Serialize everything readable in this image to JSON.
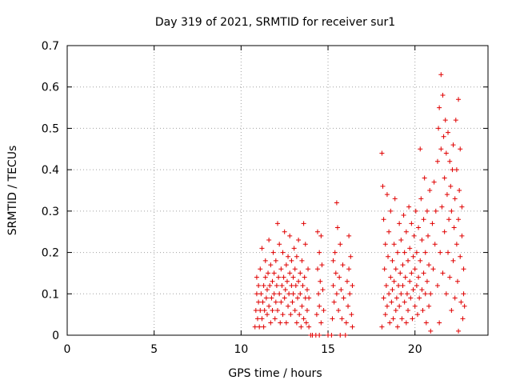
{
  "chart_data": {
    "type": "scatter",
    "title": "Day 319 of 2021, SRMTID for receiver sur1",
    "xlabel": "GPS time / hours",
    "ylabel": "SRMTID / TECUs",
    "xlim": [
      0,
      24.2
    ],
    "ylim": [
      0,
      0.7
    ],
    "x_ticks": [
      "0",
      "5",
      "10",
      "15",
      "20"
    ],
    "y_ticks": [
      "0",
      "0.1",
      "0.2",
      "0.3",
      "0.4",
      "0.5",
      "0.6",
      "0.7"
    ],
    "grid": true,
    "marker": "+",
    "color": "#e00000",
    "series": [
      {
        "name": "SRMTID",
        "points": [
          [
            10.8,
            0.02
          ],
          [
            10.85,
            0.06
          ],
          [
            10.9,
            0.1
          ],
          [
            10.9,
            0.14
          ],
          [
            10.95,
            0.04
          ],
          [
            11.0,
            0.08
          ],
          [
            11.0,
            0.12
          ],
          [
            11.05,
            0.02
          ],
          [
            11.1,
            0.06
          ],
          [
            11.1,
            0.16
          ],
          [
            11.15,
            0.1
          ],
          [
            11.2,
            0.04
          ],
          [
            11.2,
            0.21
          ],
          [
            11.25,
            0.08
          ],
          [
            11.3,
            0.12
          ],
          [
            11.3,
            0.02
          ],
          [
            11.35,
            0.06
          ],
          [
            11.4,
            0.14
          ],
          [
            11.4,
            0.18
          ],
          [
            11.45,
            0.09
          ],
          [
            11.5,
            0.11
          ],
          [
            11.5,
            0.05
          ],
          [
            11.55,
            0.15
          ],
          [
            11.6,
            0.07
          ],
          [
            11.6,
            0.23
          ],
          [
            11.65,
            0.12
          ],
          [
            11.7,
            0.03
          ],
          [
            11.7,
            0.17
          ],
          [
            11.75,
            0.09
          ],
          [
            11.8,
            0.13
          ],
          [
            11.8,
            0.06
          ],
          [
            11.85,
            0.2
          ],
          [
            11.9,
            0.1
          ],
          [
            11.9,
            0.15
          ],
          [
            11.95,
            0.04
          ],
          [
            12.0,
            0.08
          ],
          [
            12.0,
            0.18
          ],
          [
            12.05,
            0.12
          ],
          [
            12.1,
            0.27
          ],
          [
            12.1,
            0.06
          ],
          [
            12.15,
            0.14
          ],
          [
            12.2,
            0.1
          ],
          [
            12.2,
            0.22
          ],
          [
            12.25,
            0.03
          ],
          [
            12.3,
            0.16
          ],
          [
            12.3,
            0.08
          ],
          [
            12.35,
            0.12
          ],
          [
            12.4,
            0.2
          ],
          [
            12.4,
            0.05
          ],
          [
            12.45,
            0.14
          ],
          [
            12.5,
            0.09
          ],
          [
            12.5,
            0.25
          ],
          [
            12.55,
            0.11
          ],
          [
            12.6,
            0.17
          ],
          [
            12.6,
            0.03
          ],
          [
            12.65,
            0.13
          ],
          [
            12.7,
            0.07
          ],
          [
            12.7,
            0.19
          ],
          [
            12.75,
            0.1
          ],
          [
            12.8,
            0.15
          ],
          [
            12.8,
            0.24
          ],
          [
            12.85,
            0.05
          ],
          [
            12.9,
            0.12
          ],
          [
            12.9,
            0.18
          ],
          [
            12.95,
            0.08
          ],
          [
            13.0,
            0.14
          ],
          [
            13.0,
            0.1
          ],
          [
            13.05,
            0.21
          ],
          [
            13.1,
            0.06
          ],
          [
            13.1,
            0.16
          ],
          [
            13.15,
            0.12
          ],
          [
            13.2,
            0.03
          ],
          [
            13.2,
            0.19
          ],
          [
            13.25,
            0.09
          ],
          [
            13.3,
            0.13
          ],
          [
            13.3,
            0.23
          ],
          [
            13.35,
            0.05
          ],
          [
            13.4,
            0.15
          ],
          [
            13.4,
            0.1
          ],
          [
            13.45,
            0.02
          ],
          [
            13.5,
            0.18
          ],
          [
            13.5,
            0.07
          ],
          [
            13.55,
            0.12
          ],
          [
            13.6,
            0.27
          ],
          [
            13.6,
            0.04
          ],
          [
            13.65,
            0.14
          ],
          [
            13.7,
            0.09
          ],
          [
            13.7,
            0.22
          ],
          [
            13.75,
            0.03
          ],
          [
            13.8,
            0.11
          ],
          [
            13.8,
            0.06
          ],
          [
            13.85,
            0.16
          ],
          [
            13.9,
            0.02
          ],
          [
            13.9,
            0.09
          ],
          [
            14.0,
            0.0
          ],
          [
            14.1,
            0.0
          ],
          [
            14.3,
            0.0
          ],
          [
            14.35,
            0.05
          ],
          [
            14.4,
            0.16
          ],
          [
            14.4,
            0.25
          ],
          [
            14.45,
            0.1
          ],
          [
            14.5,
            0.2
          ],
          [
            14.5,
            0.07
          ],
          [
            14.55,
            0.13
          ],
          [
            14.6,
            0.03
          ],
          [
            14.6,
            0.24
          ],
          [
            14.65,
            0.17
          ],
          [
            14.7,
            0.11
          ],
          [
            14.75,
            0.06
          ],
          [
            14.5,
            0.0
          ],
          [
            15.0,
            0.0
          ],
          [
            15.2,
            0.0
          ],
          [
            15.25,
            0.04
          ],
          [
            15.3,
            0.12
          ],
          [
            15.3,
            0.18
          ],
          [
            15.35,
            0.08
          ],
          [
            15.4,
            0.2
          ],
          [
            15.45,
            0.15
          ],
          [
            15.5,
            0.32
          ],
          [
            15.5,
            0.1
          ],
          [
            15.55,
            0.26
          ],
          [
            15.6,
            0.06
          ],
          [
            15.65,
            0.14
          ],
          [
            15.7,
            0.22
          ],
          [
            15.75,
            0.11
          ],
          [
            15.8,
            0.04
          ],
          [
            15.85,
            0.17
          ],
          [
            15.9,
            0.09
          ],
          [
            15.7,
            0.0
          ],
          [
            16.0,
            0.0
          ],
          [
            16.05,
            0.03
          ],
          [
            16.1,
            0.13
          ],
          [
            16.15,
            0.07
          ],
          [
            16.2,
            0.24
          ],
          [
            16.2,
            0.16
          ],
          [
            16.25,
            0.1
          ],
          [
            16.3,
            0.19
          ],
          [
            16.35,
            0.05
          ],
          [
            16.4,
            0.12
          ],
          [
            16.4,
            0.02
          ],
          [
            18.1,
            0.44
          ],
          [
            18.1,
            0.02
          ],
          [
            18.15,
            0.36
          ],
          [
            18.2,
            0.28
          ],
          [
            18.2,
            0.09
          ],
          [
            18.25,
            0.16
          ],
          [
            18.3,
            0.05
          ],
          [
            18.3,
            0.22
          ],
          [
            18.35,
            0.12
          ],
          [
            18.4,
            0.34
          ],
          [
            18.4,
            0.07
          ],
          [
            18.45,
            0.19
          ],
          [
            18.5,
            0.1
          ],
          [
            18.5,
            0.25
          ],
          [
            18.55,
            0.03
          ],
          [
            18.6,
            0.14
          ],
          [
            18.6,
            0.3
          ],
          [
            18.65,
            0.08
          ],
          [
            18.7,
            0.18
          ],
          [
            18.7,
            0.11
          ],
          [
            18.75,
            0.04
          ],
          [
            18.8,
            0.22
          ],
          [
            18.8,
            0.13
          ],
          [
            18.85,
            0.33
          ],
          [
            18.9,
            0.06
          ],
          [
            18.9,
            0.16
          ],
          [
            18.95,
            0.09
          ],
          [
            19.0,
            0.2
          ],
          [
            19.0,
            0.02
          ],
          [
            19.05,
            0.12
          ],
          [
            19.1,
            0.27
          ],
          [
            19.1,
            0.07
          ],
          [
            19.15,
            0.15
          ],
          [
            19.2,
            0.1
          ],
          [
            19.2,
            0.23
          ],
          [
            19.25,
            0.04
          ],
          [
            19.3,
            0.17
          ],
          [
            19.3,
            0.12
          ],
          [
            19.35,
            0.29
          ],
          [
            19.4,
            0.08
          ],
          [
            19.4,
            0.2
          ],
          [
            19.45,
            0.14
          ],
          [
            19.5,
            0.03
          ],
          [
            19.5,
            0.25
          ],
          [
            19.55,
            0.1
          ],
          [
            19.6,
            0.18
          ],
          [
            19.6,
            0.06
          ],
          [
            19.65,
            0.31
          ],
          [
            19.7,
            0.13
          ],
          [
            19.7,
            0.21
          ],
          [
            19.75,
            0.09
          ],
          [
            19.8,
            0.15
          ],
          [
            19.8,
            0.27
          ],
          [
            19.85,
            0.04
          ],
          [
            19.9,
            0.19
          ],
          [
            19.9,
            0.11
          ],
          [
            19.95,
            0.24
          ],
          [
            20.0,
            0.07
          ],
          [
            20.0,
            0.16
          ],
          [
            20.05,
            0.3
          ],
          [
            20.1,
            0.12
          ],
          [
            20.1,
            0.2
          ],
          [
            20.15,
            0.05
          ],
          [
            20.2,
            0.26
          ],
          [
            20.2,
            0.14
          ],
          [
            20.25,
            0.09
          ],
          [
            20.3,
            0.45
          ],
          [
            20.3,
            0.18
          ],
          [
            20.35,
            0.33
          ],
          [
            20.4,
            0.11
          ],
          [
            20.4,
            0.23
          ],
          [
            20.45,
            0.06
          ],
          [
            20.5,
            0.28
          ],
          [
            20.5,
            0.15
          ],
          [
            20.55,
            0.38
          ],
          [
            20.6,
            0.1
          ],
          [
            20.6,
            0.2
          ],
          [
            20.65,
            0.03
          ],
          [
            20.7,
            0.3
          ],
          [
            20.7,
            0.13
          ],
          [
            20.75,
            0.24
          ],
          [
            20.8,
            0.07
          ],
          [
            20.8,
            0.17
          ],
          [
            20.85,
            0.35
          ],
          [
            20.9,
            0.01
          ],
          [
            20.9,
            0.1
          ],
          [
            21.0,
            0.27
          ],
          [
            21.05,
            0.16
          ],
          [
            21.1,
            0.37
          ],
          [
            21.15,
            0.22
          ],
          [
            21.2,
            0.3
          ],
          [
            21.3,
            0.12
          ],
          [
            21.3,
            0.42
          ],
          [
            21.35,
            0.5
          ],
          [
            21.4,
            0.55
          ],
          [
            21.4,
            0.03
          ],
          [
            21.45,
            0.2
          ],
          [
            21.5,
            0.63
          ],
          [
            21.5,
            0.45
          ],
          [
            21.55,
            0.31
          ],
          [
            21.6,
            0.58
          ],
          [
            21.6,
            0.15
          ],
          [
            21.65,
            0.48
          ],
          [
            21.7,
            0.38
          ],
          [
            21.7,
            0.25
          ],
          [
            21.75,
            0.52
          ],
          [
            21.8,
            0.44
          ],
          [
            21.8,
            0.1
          ],
          [
            21.85,
            0.34
          ],
          [
            21.9,
            0.49
          ],
          [
            21.9,
            0.2
          ],
          [
            21.95,
            0.28
          ],
          [
            22.0,
            0.42
          ],
          [
            22.0,
            0.14
          ],
          [
            22.05,
            0.36
          ],
          [
            22.1,
            0.06
          ],
          [
            22.1,
            0.3
          ],
          [
            22.15,
            0.4
          ],
          [
            22.2,
            0.18
          ],
          [
            22.2,
            0.46
          ],
          [
            22.25,
            0.26
          ],
          [
            22.3,
            0.09
          ],
          [
            22.3,
            0.33
          ],
          [
            22.35,
            0.52
          ],
          [
            22.4,
            0.22
          ],
          [
            22.4,
            0.4
          ],
          [
            22.45,
            0.13
          ],
          [
            22.5,
            0.57
          ],
          [
            22.5,
            0.28
          ],
          [
            22.55,
            0.35
          ],
          [
            22.6,
            0.19
          ],
          [
            22.6,
            0.45
          ],
          [
            22.65,
            0.08
          ],
          [
            22.7,
            0.31
          ],
          [
            22.7,
            0.24
          ],
          [
            22.75,
            0.04
          ],
          [
            22.8,
            0.16
          ],
          [
            22.8,
            0.1
          ],
          [
            22.5,
            0.01
          ],
          [
            22.85,
            0.07
          ]
        ]
      }
    ]
  }
}
